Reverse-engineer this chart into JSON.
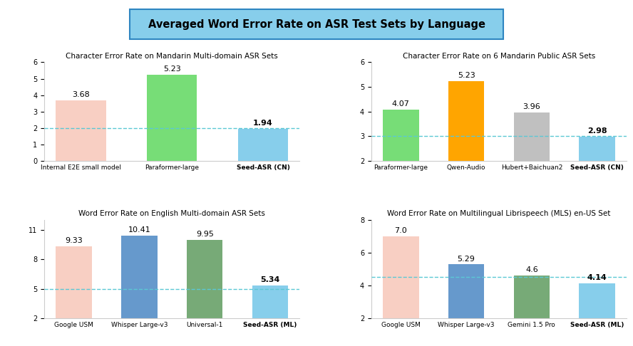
{
  "title": "Averaged Word Error Rate on ASR Test Sets by Language",
  "title_bg_color": "#87CEEB",
  "title_border_color": "#2e86c1",
  "subplots": [
    {
      "title": "Character Error Rate on Mandarin Multi-domain ASR Sets",
      "categories": [
        "Internal E2E small model",
        "Paraformer-large",
        "Seed-ASR (CN)"
      ],
      "values": [
        3.68,
        5.23,
        1.94
      ],
      "colors": [
        "#f8cfc3",
        "#77dd77",
        "#87ceeb"
      ],
      "last_bold": true,
      "hline": 2.0,
      "ylim": [
        0,
        6
      ],
      "yticks": [
        0,
        1,
        2,
        3,
        4,
        5,
        6
      ]
    },
    {
      "title": "Character Error Rate on 6 Mandarin Public ASR Sets",
      "categories": [
        "Paraformer-large",
        "Qwen-Audio",
        "Hubert+Baichuan2",
        "Seed-ASR (CN)"
      ],
      "values": [
        4.07,
        5.23,
        3.96,
        2.98
      ],
      "colors": [
        "#77dd77",
        "#ffa500",
        "#c0c0c0",
        "#87ceeb"
      ],
      "last_bold": true,
      "hline": 3.0,
      "ylim": [
        2,
        6
      ],
      "yticks": [
        2,
        3,
        4,
        5,
        6
      ]
    },
    {
      "title": "Word Error Rate on English Multi-domain ASR Sets",
      "categories": [
        "Google USM",
        "Whisper Large-v3",
        "Universal-1",
        "Seed-ASR (ML)"
      ],
      "values": [
        9.33,
        10.41,
        9.95,
        5.34
      ],
      "colors": [
        "#f8cfc3",
        "#6699cc",
        "#77aa77",
        "#87ceeb"
      ],
      "last_bold": true,
      "hline": 5.0,
      "ylim": [
        2,
        12
      ],
      "yticks": [
        2,
        5,
        8,
        11
      ]
    },
    {
      "title": "Word Error Rate on Multilingual Librispeech (MLS) en-US Set",
      "categories": [
        "Google USM",
        "Whisper Large-v3",
        "Gemini 1.5 Pro",
        "Seed-ASR (ML)"
      ],
      "values": [
        7.0,
        5.29,
        4.6,
        4.14
      ],
      "colors": [
        "#f8cfc3",
        "#6699cc",
        "#77aa77",
        "#87ceeb"
      ],
      "last_bold": true,
      "hline": 4.5,
      "ylim": [
        2,
        8
      ],
      "yticks": [
        2,
        4,
        6,
        8
      ]
    }
  ]
}
